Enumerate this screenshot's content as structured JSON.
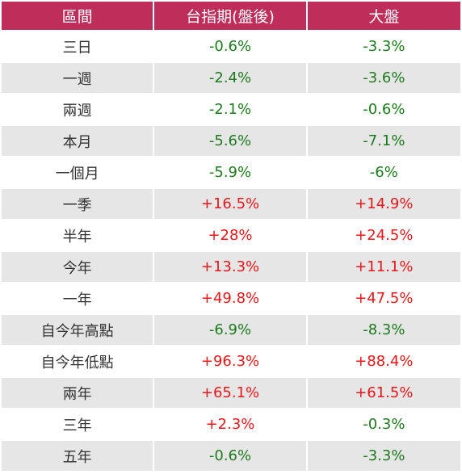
{
  "colors": {
    "header_bg": "#bf2e5b",
    "positive": "#e8171c",
    "negative": "#1f7a1f",
    "stripe": "#e6e6e6"
  },
  "headers": [
    "區間",
    "台指期(盤後)",
    "大盤"
  ],
  "rows": [
    {
      "period": "三日",
      "futures": "-0.6%",
      "market": "-3.3%",
      "futures_sign": "neg",
      "market_sign": "neg"
    },
    {
      "period": "一週",
      "futures": "-2.4%",
      "market": "-3.6%",
      "futures_sign": "neg",
      "market_sign": "neg"
    },
    {
      "period": "兩週",
      "futures": "-2.1%",
      "market": "-0.6%",
      "futures_sign": "neg",
      "market_sign": "neg"
    },
    {
      "period": "本月",
      "futures": "-5.6%",
      "market": "-7.1%",
      "futures_sign": "neg",
      "market_sign": "neg"
    },
    {
      "period": "一個月",
      "futures": "-5.9%",
      "market": "-6%",
      "futures_sign": "neg",
      "market_sign": "neg"
    },
    {
      "period": "一季",
      "futures": "+16.5%",
      "market": "+14.9%",
      "futures_sign": "pos",
      "market_sign": "pos"
    },
    {
      "period": "半年",
      "futures": "+28%",
      "market": "+24.5%",
      "futures_sign": "pos",
      "market_sign": "pos"
    },
    {
      "period": "今年",
      "futures": "+13.3%",
      "market": "+11.1%",
      "futures_sign": "pos",
      "market_sign": "pos"
    },
    {
      "period": "一年",
      "futures": "+49.8%",
      "market": "+47.5%",
      "futures_sign": "pos",
      "market_sign": "pos"
    },
    {
      "period": "自今年高點",
      "futures": "-6.9%",
      "market": "-8.3%",
      "futures_sign": "neg",
      "market_sign": "neg"
    },
    {
      "period": "自今年低點",
      "futures": "+96.3%",
      "market": "+88.4%",
      "futures_sign": "pos",
      "market_sign": "pos"
    },
    {
      "period": "兩年",
      "futures": "+65.1%",
      "market": "+61.5%",
      "futures_sign": "pos",
      "market_sign": "pos"
    },
    {
      "period": "三年",
      "futures": "+2.3%",
      "market": "-0.3%",
      "futures_sign": "pos",
      "market_sign": "neg"
    },
    {
      "period": "五年",
      "futures": "-0.6%",
      "market": "-3.3%",
      "futures_sign": "neg",
      "market_sign": "neg"
    }
  ]
}
